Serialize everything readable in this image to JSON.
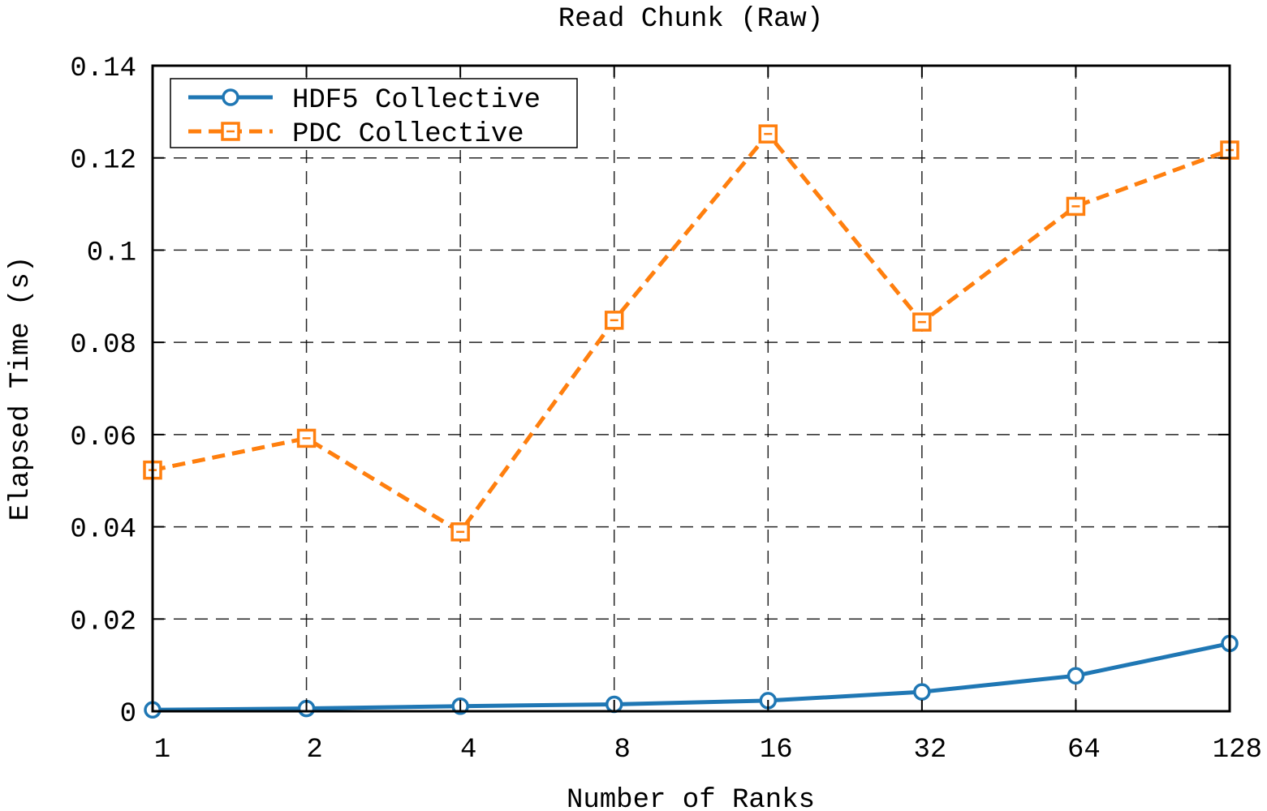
{
  "chart_data": {
    "type": "line",
    "title": "Read Chunk (Raw)",
    "xlabel": "Number of Ranks",
    "ylabel": "Elapsed Time (s)",
    "categories": [
      "1",
      "2",
      "4",
      "8",
      "16",
      "32",
      "64",
      "128"
    ],
    "ylim": [
      0,
      0.14
    ],
    "yticks": [
      "0",
      "0.02",
      "0.04",
      "0.06",
      "0.08",
      "0.1",
      "0.12",
      "0.14"
    ],
    "grid": true,
    "legend_position": "top-left",
    "series": [
      {
        "name": "HDF5 Collective",
        "color": "#1f77b4",
        "marker": "circle",
        "line_style": "solid",
        "values": [
          0.0003,
          0.0006,
          0.0011,
          0.0015,
          0.0023,
          0.0042,
          0.0077,
          0.0147
        ]
      },
      {
        "name": "PDC Collective",
        "color": "#ff7f0e",
        "marker": "square",
        "line_style": "dashed",
        "values": [
          0.0523,
          0.0592,
          0.0389,
          0.0848,
          0.1252,
          0.0844,
          0.1095,
          0.1217
        ]
      }
    ]
  }
}
